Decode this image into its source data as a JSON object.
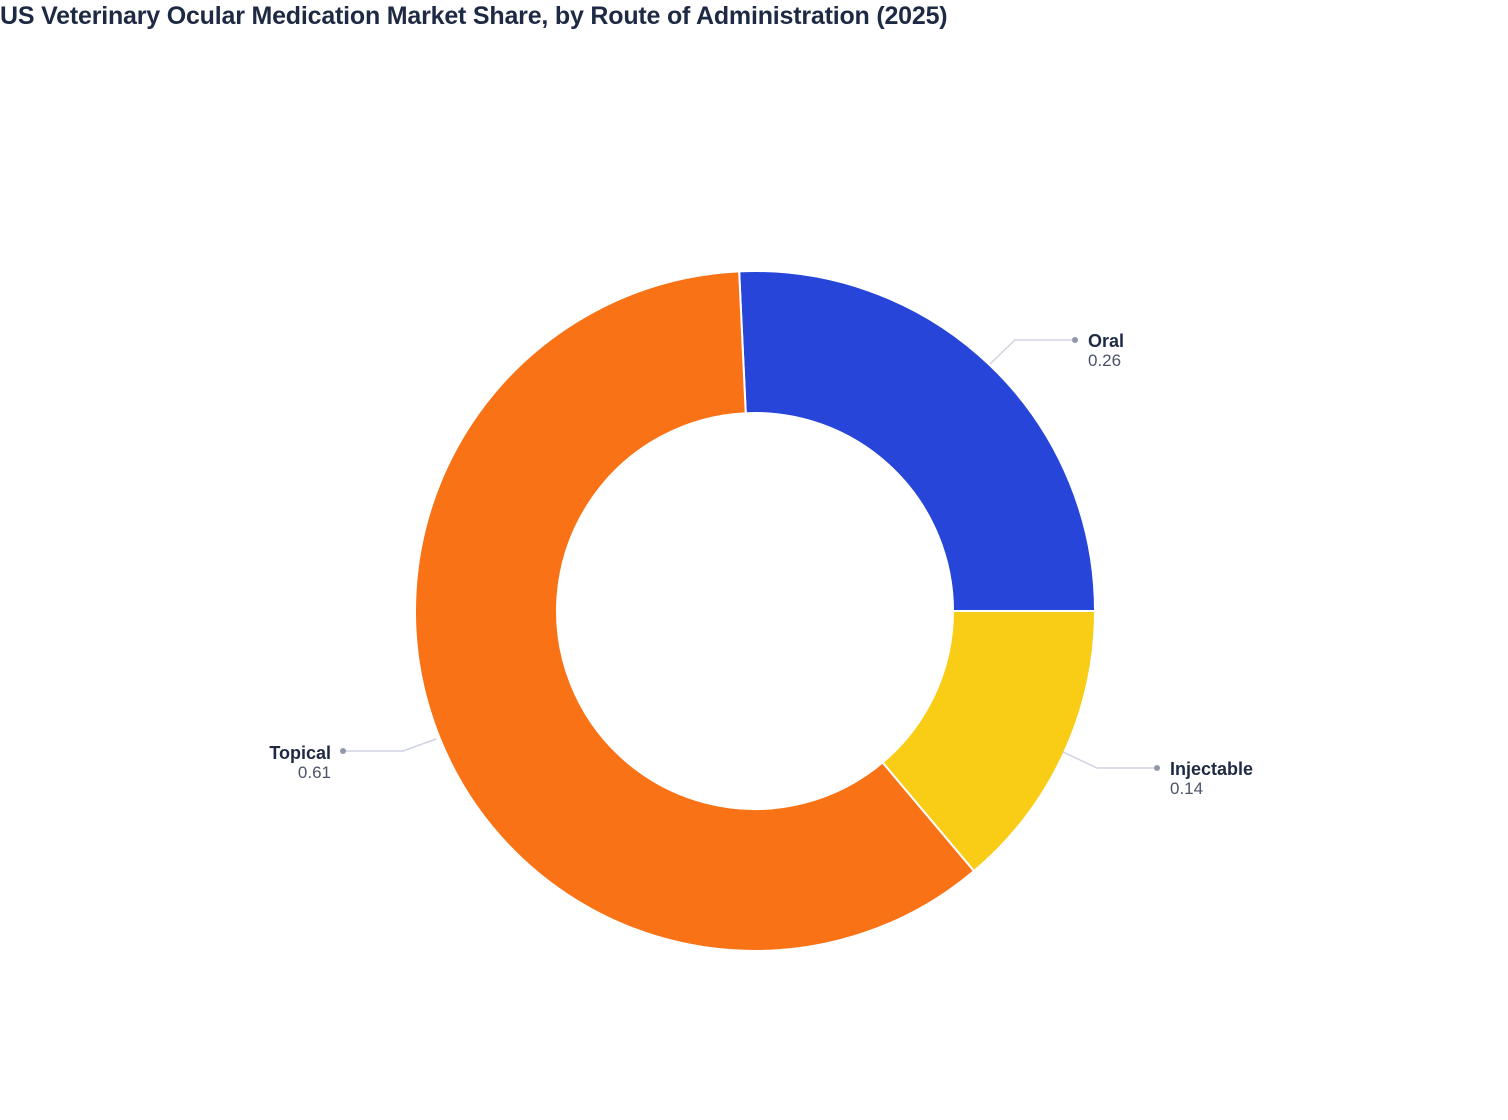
{
  "title": "US Veterinary Ocular Medication Market Share, by Route of Administration (2025)",
  "chart_data": {
    "type": "pie",
    "subtype": "donut",
    "title": "US Veterinary Ocular Medication Market Share, by Route of Administration (2025)",
    "categories": [
      "Oral",
      "Injectable",
      "Topical"
    ],
    "values": [
      0.26,
      0.14,
      0.61
    ],
    "colors": [
      "#2745d9",
      "#f9cc16",
      "#f97316"
    ],
    "hole": 0.58,
    "legend": "none",
    "labels_outside": true
  },
  "labels": [
    {
      "name": "Oral",
      "value": "0.26"
    },
    {
      "name": "Injectable",
      "value": "0.14"
    },
    {
      "name": "Topical",
      "value": "0.61"
    }
  ],
  "colors": {
    "title": "#1e2a44",
    "connector": "#cfd3e3",
    "dot": "#9198aa"
  }
}
